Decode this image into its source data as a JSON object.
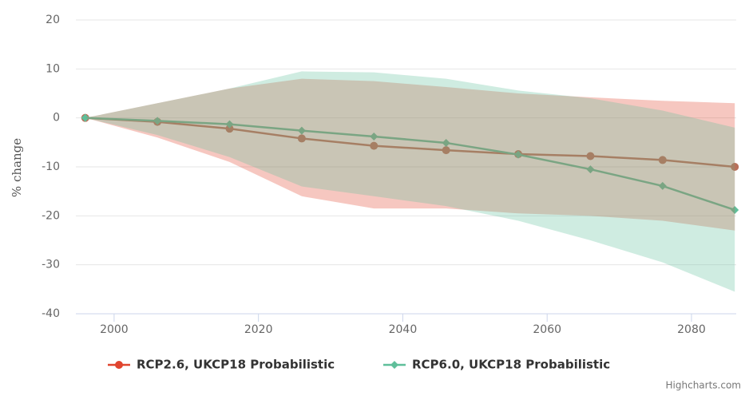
{
  "chart_data": {
    "type": "line",
    "y_label": "% change",
    "x": [
      1996,
      2006,
      2016,
      2026,
      2036,
      2046,
      2056,
      2066,
      2076,
      2086
    ],
    "xlim": [
      1994.7,
      2086.2
    ],
    "xticks": [
      2000,
      2020,
      2040,
      2060,
      2080
    ],
    "ylim": [
      -40,
      20
    ],
    "yticks": [
      -40,
      -30,
      -20,
      -10,
      0,
      10,
      20
    ],
    "grid": true,
    "legend": "bottom",
    "credit": "Highcharts.com",
    "series": [
      {
        "name": "RCP2.6, UKCP18 Probabilistic",
        "color": "#e0452f",
        "line_color": "#b9705a",
        "marker": "circle",
        "values": [
          0,
          -0.8,
          -2.2,
          -4.2,
          -5.7,
          -6.6,
          -7.4,
          -7.8,
          -8.6,
          -10
        ],
        "upper": [
          0,
          3,
          6,
          8,
          7.5,
          6.3,
          5,
          4.2,
          3.5,
          3
        ],
        "lower": [
          0,
          -4,
          -9,
          -16,
          -18.5,
          -18.5,
          -19.5,
          -20,
          -21,
          -23
        ]
      },
      {
        "name": "RCP6.0, UKCP18 Probabilistic",
        "color": "#5fbf9a",
        "line_color": "#5fbf9a",
        "marker": "diamond",
        "values": [
          0,
          -0.6,
          -1.3,
          -2.6,
          -3.8,
          -5.1,
          -7.5,
          -10.5,
          -13.9,
          -18.8
        ],
        "upper": [
          0,
          3,
          6,
          9.5,
          9.3,
          8,
          5.6,
          4,
          1.5,
          -2
        ],
        "lower": [
          0,
          -3.5,
          -8,
          -14,
          -16,
          -18,
          -21,
          -25,
          -29.5,
          -35.5
        ]
      }
    ]
  }
}
